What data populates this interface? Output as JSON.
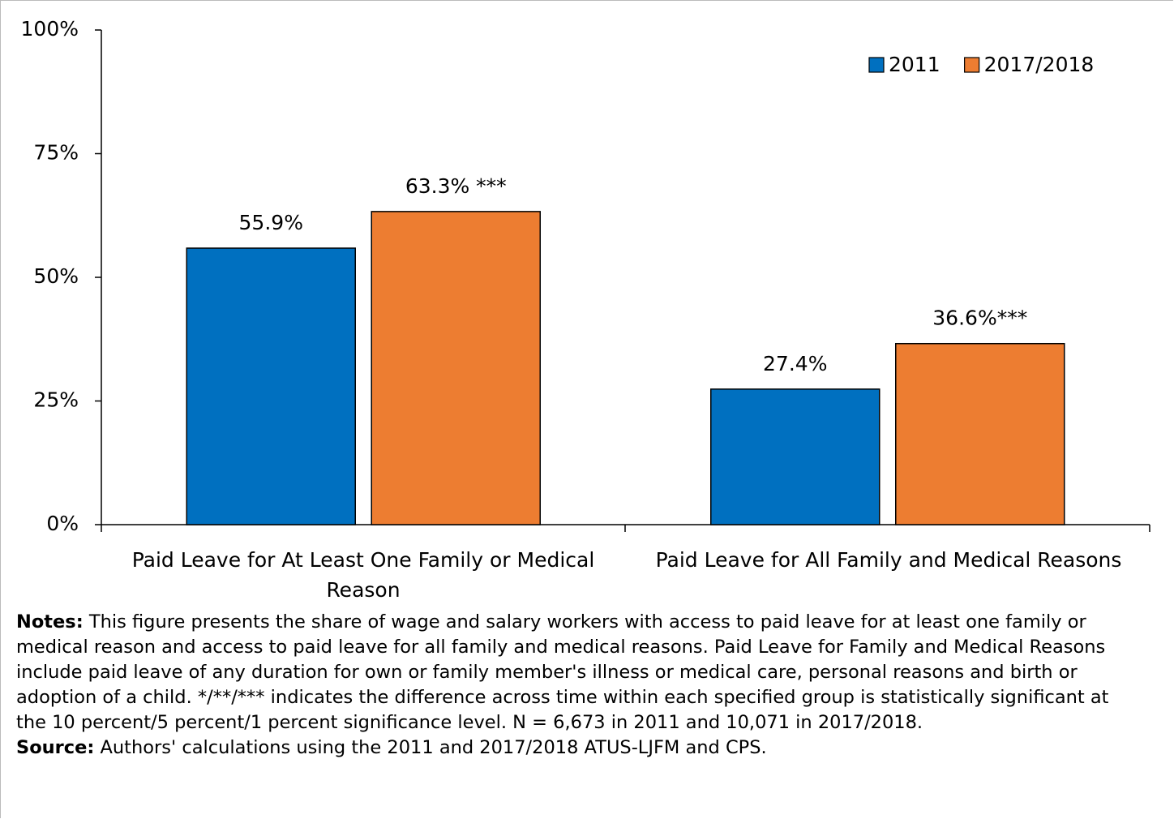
{
  "chart_data": {
    "type": "bar",
    "categories": [
      "Paid Leave for At Least One Family or Medical Reason",
      "Paid Leave for All Family and Medical Reasons"
    ],
    "series": [
      {
        "name": "2011",
        "color": "#0070c0",
        "values": [
          55.9,
          27.4
        ],
        "value_labels": [
          "55.9%",
          "27.4%"
        ]
      },
      {
        "name": "2017/2018",
        "color": "#ed7d31",
        "values": [
          63.3,
          36.6
        ],
        "value_labels": [
          "63.3% ***",
          "36.6%***"
        ]
      }
    ],
    "ylim": [
      0,
      100
    ],
    "yticks": [
      {
        "value": 0,
        "label": "0%"
      },
      {
        "value": 25,
        "label": "25%"
      },
      {
        "value": 50,
        "label": "50%"
      },
      {
        "value": 75,
        "label": "75%"
      },
      {
        "value": 100,
        "label": "100%"
      }
    ],
    "grid": false,
    "legend": "upper right"
  },
  "notes": {
    "label": "Notes:",
    "text": "This figure presents the share of wage and salary workers with access to paid leave for at least one family or medical reason and access to paid leave for all family and medical reasons. Paid Leave for Family and Medical Reasons include paid leave of any duration for own or family member's illness or medical care, personal reasons and birth or adoption of a child. */**/*** indicates the difference across time within each specified group is statistically significant at the 10 percent/5 percent/1 percent significance level. N = 6,673 in 2011 and 10,071 in 2017/2018."
  },
  "source": {
    "label": "Source:",
    "text": "Authors' calculations using the 2011 and 2017/2018 ATUS-LJFM and CPS."
  }
}
